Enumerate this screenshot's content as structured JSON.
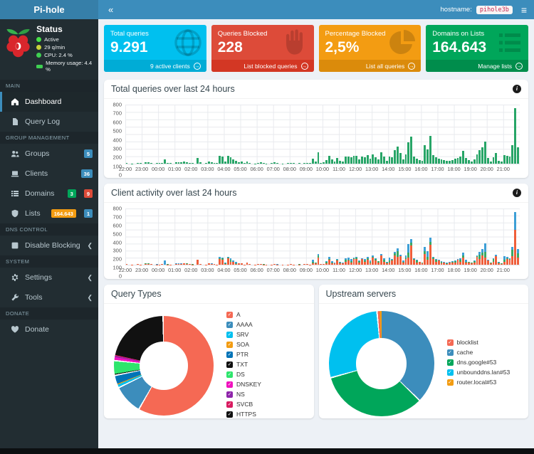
{
  "header": {
    "brand": "Pi-hole",
    "collapse_icon": "«",
    "hostname_label": "hostname:",
    "hostname_value": "pihole3b",
    "menu_icon": "≡"
  },
  "sidebar": {
    "status": {
      "title": "Status",
      "items": [
        {
          "icon": "status-active-icon",
          "shape": "dot",
          "color": "#46e046",
          "label": "Active"
        },
        {
          "icon": "gauge-icon",
          "shape": "dot",
          "color": "#c9d13b",
          "label": "29 q/min"
        },
        {
          "icon": "cpu-icon",
          "shape": "dot",
          "color": "#3fcf52",
          "label": "CPU: 2.4 %"
        },
        {
          "icon": "memory-icon",
          "shape": "rect",
          "color": "#3fcf52",
          "label": "Memory usage: 4.4 %"
        }
      ]
    },
    "sections": [
      {
        "label": "MAIN",
        "items": [
          {
            "label": "Dashboard",
            "icon": "home-icon",
            "active": true
          },
          {
            "label": "Query Log",
            "icon": "file-icon"
          }
        ]
      },
      {
        "label": "GROUP MANAGEMENT",
        "items": [
          {
            "label": "Groups",
            "icon": "users-icon",
            "badges": [
              {
                "text": "5",
                "color": "#3c8dbc"
              }
            ]
          },
          {
            "label": "Clients",
            "icon": "laptop-icon",
            "badges": [
              {
                "text": "36",
                "color": "#3c8dbc"
              }
            ]
          },
          {
            "label": "Domains",
            "icon": "list-icon",
            "badges": [
              {
                "text": "3",
                "color": "#00a65a"
              },
              {
                "text": "9",
                "color": "#dd4b39"
              }
            ]
          },
          {
            "label": "Lists",
            "icon": "shield-icon",
            "badges": [
              {
                "text": "164.643",
                "color": "#f39c12"
              },
              {
                "text": "1",
                "color": "#3c8dbc"
              }
            ]
          }
        ]
      },
      {
        "label": "DNS CONTROL",
        "items": [
          {
            "label": "Disable Blocking",
            "icon": "stop-icon",
            "chevron": true
          }
        ]
      },
      {
        "label": "SYSTEM",
        "items": [
          {
            "label": "Settings",
            "icon": "gears-icon",
            "chevron": true
          },
          {
            "label": "Tools",
            "icon": "wrench-icon",
            "chevron": true
          }
        ]
      },
      {
        "label": "DONATE",
        "items": [
          {
            "label": "Donate",
            "icon": "donate-icon"
          }
        ]
      }
    ]
  },
  "cards": [
    {
      "title": "Total queries",
      "value": "9.291",
      "footer": "9 active clients",
      "icon": "globe-icon",
      "color": "#00c0ef",
      "footer_color": "#00acd6"
    },
    {
      "title": "Queries Blocked",
      "value": "228",
      "footer": "List blocked queries",
      "icon": "hand-icon",
      "color": "#dd4b39",
      "footer_color": "#d33724"
    },
    {
      "title": "Percentage Blocked",
      "value": "2,5%",
      "footer": "List all queries",
      "icon": "pie-icon",
      "color": "#f39c12",
      "footer_color": "#db8b0b"
    },
    {
      "title": "Domains on Lists",
      "value": "164.643",
      "footer": "Manage lists",
      "icon": "rows-icon",
      "color": "#00a65a",
      "footer_color": "#008d4c"
    }
  ],
  "panels": {
    "total_queries": {
      "title": "Total queries over last 24 hours"
    },
    "client_activity": {
      "title": "Client activity over last 24 hours"
    },
    "query_types": {
      "title": "Query Types"
    },
    "upstreams": {
      "title": "Upstream servers"
    }
  },
  "chart_data": [
    {
      "type": "bar",
      "title": "Total queries over last 24 hours",
      "interval_minutes": 10,
      "bar_color": "#27a567",
      "ylim": [
        0,
        800
      ],
      "y_ticks": [
        800,
        700,
        600,
        500,
        400,
        300,
        200,
        100,
        0
      ],
      "x_ticks": [
        "22:00",
        "23:00",
        "00:00",
        "01:00",
        "02:00",
        "03:00",
        "04:00",
        "05:00",
        "06:00",
        "07:00",
        "08:00",
        "09:00",
        "10:00",
        "11:00",
        "12:00",
        "13:00",
        "14:00",
        "15:00",
        "16:00",
        "17:00",
        "18:00",
        "19:00",
        "20:00",
        "21:00"
      ],
      "values": [
        8,
        0,
        4,
        0,
        10,
        5,
        0,
        18,
        22,
        10,
        0,
        6,
        5,
        8,
        60,
        10,
        5,
        0,
        20,
        22,
        18,
        25,
        20,
        8,
        10,
        0,
        75,
        15,
        0,
        5,
        25,
        18,
        10,
        5,
        110,
        100,
        28,
        110,
        90,
        60,
        38,
        22,
        25,
        5,
        30,
        12,
        0,
        4,
        8,
        15,
        10,
        4,
        0,
        5,
        15,
        6,
        0,
        4,
        0,
        5,
        10,
        5,
        0,
        6,
        0,
        8,
        12,
        5,
        70,
        32,
        150,
        12,
        15,
        52,
        110,
        55,
        28,
        80,
        42,
        28,
        95,
        100,
        85,
        105,
        110,
        62,
        92,
        85,
        115,
        65,
        130,
        88,
        55,
        150,
        95,
        38,
        100,
        85,
        185,
        230,
        140,
        60,
        130,
        290,
        370,
        95,
        70,
        45,
        35,
        250,
        190,
        380,
        115,
        85,
        70,
        55,
        45,
        35,
        40,
        50,
        65,
        80,
        95,
        170,
        75,
        45,
        30,
        60,
        130,
        185,
        225,
        300,
        75,
        30,
        90,
        140,
        40,
        25,
        120,
        110,
        95,
        250,
        750,
        220
      ]
    },
    {
      "type": "bar",
      "stacked": true,
      "title": "Client activity over last 24 hours",
      "interval_minutes": 10,
      "series_colors": [
        "#ef5e3a",
        "#3aa864",
        "#3d9fd6"
      ],
      "ylim": [
        0,
        800
      ],
      "y_ticks": [
        800,
        700,
        600,
        500,
        400,
        300,
        200,
        100,
        0
      ],
      "x_ticks": [
        "22:00",
        "23:00",
        "00:00",
        "01:00",
        "02:00",
        "03:00",
        "04:00",
        "05:00",
        "06:00",
        "07:00",
        "08:00",
        "09:00",
        "10:00",
        "11:00",
        "12:00",
        "13:00",
        "14:00",
        "15:00",
        "16:00",
        "17:00",
        "18:00",
        "19:00",
        "20:00",
        "21:00"
      ],
      "totals": [
        8,
        0,
        4,
        0,
        10,
        5,
        0,
        18,
        22,
        10,
        0,
        6,
        5,
        8,
        60,
        10,
        5,
        0,
        20,
        22,
        18,
        25,
        20,
        8,
        10,
        0,
        75,
        15,
        0,
        5,
        25,
        18,
        10,
        5,
        110,
        100,
        28,
        110,
        90,
        60,
        38,
        22,
        25,
        5,
        30,
        12,
        0,
        4,
        8,
        15,
        10,
        4,
        0,
        5,
        15,
        6,
        0,
        4,
        0,
        5,
        10,
        5,
        0,
        6,
        0,
        8,
        12,
        5,
        70,
        32,
        150,
        12,
        15,
        52,
        110,
        55,
        28,
        80,
        42,
        28,
        95,
        100,
        85,
        105,
        110,
        62,
        92,
        85,
        115,
        65,
        130,
        88,
        55,
        150,
        95,
        38,
        100,
        85,
        185,
        230,
        140,
        60,
        130,
        290,
        370,
        95,
        70,
        45,
        35,
        250,
        190,
        380,
        115,
        85,
        70,
        55,
        45,
        35,
        40,
        50,
        65,
        80,
        95,
        170,
        75,
        45,
        30,
        60,
        130,
        185,
        225,
        300,
        75,
        30,
        90,
        140,
        40,
        25,
        120,
        110,
        95,
        250,
        750,
        220
      ],
      "split_pattern": [
        [
          0.7,
          0.2,
          0.1
        ],
        [
          0.5,
          0.35,
          0.15
        ],
        [
          0.85,
          0.05,
          0.1
        ],
        [
          0.45,
          0.3,
          0.25
        ],
        [
          0.6,
          0.15,
          0.25
        ],
        [
          0.35,
          0.25,
          0.4
        ],
        [
          0.75,
          0.1,
          0.15
        ]
      ],
      "split_overrides": {
        "14": [
          0,
          0,
          1
        ],
        "26": [
          1,
          0,
          0
        ],
        "142": [
          0.66,
          0,
          0.34
        ]
      }
    },
    {
      "type": "doughnut",
      "title": "Query Types",
      "slices": [
        {
          "label": "A",
          "value": 58.5,
          "color": "#f56954"
        },
        {
          "label": "AAAA",
          "value": 9.5,
          "color": "#3c8dbc"
        },
        {
          "label": "SRV",
          "value": 0.8,
          "color": "#00c0ef"
        },
        {
          "label": "SOA",
          "value": 0.3,
          "color": "#f39c12"
        },
        {
          "label": "PTR",
          "value": 3.0,
          "color": "#0073b7"
        },
        {
          "label": "TXT",
          "value": 0.3,
          "color": "#111111"
        },
        {
          "label": "DS",
          "value": 4.5,
          "color": "#2ee56c"
        },
        {
          "label": "DNSKEY",
          "value": 0.9,
          "color": "#f012be"
        },
        {
          "label": "NS",
          "value": 0.4,
          "color": "#8e24aa"
        },
        {
          "label": "SVCB",
          "value": 0.3,
          "color": "#d81b60"
        },
        {
          "label": "HTTPS",
          "value": 21.5,
          "color": "#111111"
        }
      ]
    },
    {
      "type": "doughnut",
      "title": "Upstream servers",
      "draw_order": [
        1,
        2,
        3,
        0,
        4
      ],
      "slices": [
        {
          "label": "blocklist",
          "value": 0.6,
          "color": "#f56954"
        },
        {
          "label": "cache",
          "value": 37.5,
          "color": "#3c8dbc"
        },
        {
          "label": "dns.google#53",
          "value": 33.4,
          "color": "#00a65a"
        },
        {
          "label": "unbounddns.lan#53",
          "value": 27.9,
          "color": "#00c0ef"
        },
        {
          "label": "router.local#53",
          "value": 0.6,
          "color": "#f39c12"
        }
      ]
    }
  ]
}
